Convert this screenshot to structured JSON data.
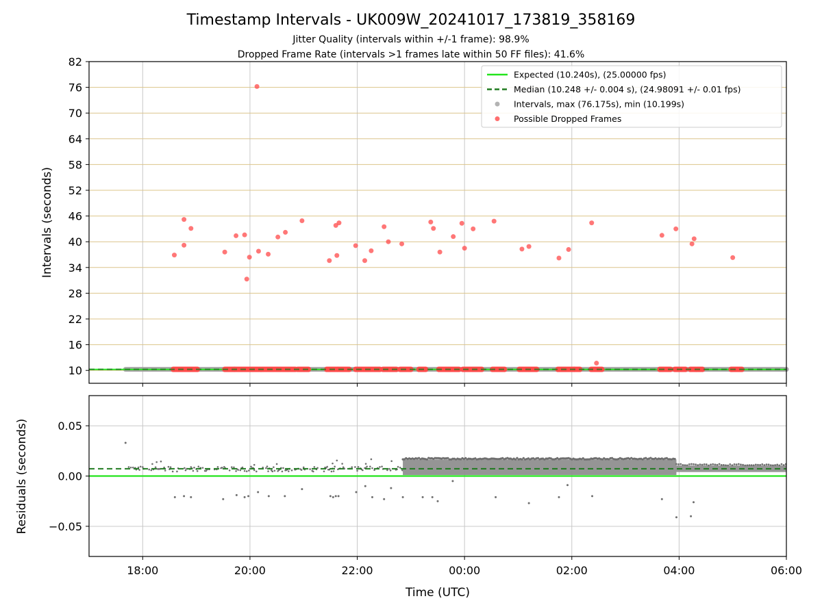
{
  "title": "Timestamp Intervals - UK009W_20241017_173819_358169",
  "subtitle1": "Jitter Quality (intervals within +/-1 frame): 98.9%",
  "subtitle2": "Dropped Frame Rate (intervals >1 frames late within 50 FF files): 41.6%",
  "colors": {
    "expected": "#22e41b",
    "median": "#1f7a1f",
    "intervals": "#9a9a9a",
    "dropped": "#ff4a4a",
    "hgrid_top": "#dcc48a",
    "grid": "#c8c8c8",
    "residual_point": "#6e6e6e"
  },
  "chart_data": [
    {
      "id": "intervals",
      "type": "scatter",
      "xlabel": "",
      "ylabel": "Intervals (seconds)",
      "xlim_hours": [
        17.0,
        30.0
      ],
      "ylim": [
        7,
        82
      ],
      "yticks": [
        10,
        16,
        22,
        28,
        34,
        40,
        46,
        52,
        58,
        64,
        70,
        76,
        82
      ],
      "ytick_labels": [
        "10",
        "16",
        "22",
        "28",
        "34",
        "40",
        "46",
        "52",
        "58",
        "64",
        "70",
        "76",
        "82"
      ],
      "xticks_hours": [
        18,
        20,
        22,
        24,
        26,
        28,
        30
      ],
      "expected": 10.24,
      "median": 10.248,
      "interval_range_hours": [
        17.68,
        30.0
      ],
      "dropped_points": [
        [
          18.59,
          36.9
        ],
        [
          18.77,
          45.2
        ],
        [
          18.77,
          39.2
        ],
        [
          18.9,
          43.1
        ],
        [
          19.53,
          37.6
        ],
        [
          19.74,
          41.4
        ],
        [
          19.9,
          41.6
        ],
        [
          19.94,
          31.3
        ],
        [
          19.99,
          36.4
        ],
        [
          20.13,
          76.2
        ],
        [
          20.16,
          37.8
        ],
        [
          20.34,
          37.1
        ],
        [
          20.52,
          41.1
        ],
        [
          20.66,
          42.2
        ],
        [
          20.97,
          44.9
        ],
        [
          21.48,
          35.6
        ],
        [
          21.6,
          43.8
        ],
        [
          21.62,
          36.8
        ],
        [
          21.66,
          44.4
        ],
        [
          21.97,
          39.1
        ],
        [
          22.14,
          35.6
        ],
        [
          22.26,
          37.9
        ],
        [
          22.5,
          43.5
        ],
        [
          22.58,
          40.0
        ],
        [
          22.83,
          39.5
        ],
        [
          23.37,
          44.6
        ],
        [
          23.42,
          43.1
        ],
        [
          23.54,
          37.6
        ],
        [
          23.79,
          41.2
        ],
        [
          23.95,
          44.3
        ],
        [
          24.0,
          38.5
        ],
        [
          24.16,
          43.0
        ],
        [
          24.55,
          44.8
        ],
        [
          25.07,
          38.3
        ],
        [
          25.2,
          38.9
        ],
        [
          25.76,
          36.2
        ],
        [
          25.94,
          38.2
        ],
        [
          26.37,
          44.4
        ],
        [
          27.68,
          41.5
        ],
        [
          27.94,
          43.0
        ],
        [
          28.24,
          39.5
        ],
        [
          28.28,
          40.7
        ],
        [
          29.0,
          36.3
        ],
        [
          26.46,
          11.7
        ]
      ],
      "dropped_bands_hours": [
        [
          18.57,
          19.04
        ],
        [
          19.53,
          19.72
        ],
        [
          19.72,
          20.85
        ],
        [
          20.89,
          21.09
        ],
        [
          21.43,
          21.65
        ],
        [
          21.65,
          21.87
        ],
        [
          21.97,
          22.42
        ],
        [
          22.48,
          22.74
        ],
        [
          22.8,
          23.01
        ],
        [
          23.15,
          23.29
        ],
        [
          23.52,
          23.9
        ],
        [
          23.97,
          24.34
        ],
        [
          24.52,
          24.76
        ],
        [
          25.02,
          25.36
        ],
        [
          25.74,
          26.05
        ],
        [
          26.05,
          26.16
        ],
        [
          26.36,
          26.57
        ],
        [
          27.64,
          27.84
        ],
        [
          27.92,
          28.13
        ],
        [
          28.21,
          28.44
        ],
        [
          28.97,
          29.18
        ]
      ],
      "legend": [
        {
          "kind": "line",
          "label": "Expected (10.240s), (25.00000 fps)"
        },
        {
          "kind": "dashed",
          "label": "Median (10.248 +/- 0.004 s), (24.98091 +/- 0.01 fps)"
        },
        {
          "kind": "gray",
          "label": "Intervals, max (76.175s), min (10.199s)"
        },
        {
          "kind": "red",
          "label": "Possible Dropped Frames"
        }
      ]
    },
    {
      "id": "residuals",
      "type": "scatter",
      "xlabel": "Time (UTC)",
      "ylabel": "Residuals (seconds)",
      "xlim_hours": [
        17.0,
        30.0
      ],
      "ylim": [
        -0.08,
        0.08
      ],
      "yticks": [
        0.05,
        0.0,
        -0.05
      ],
      "ytick_labels": [
        "0.05",
        "0.00",
        "−0.05"
      ],
      "xticks_hours": [
        18,
        20,
        22,
        24,
        26,
        28,
        30
      ],
      "xtick_labels": [
        "18:00",
        "20:00",
        "22:00",
        "00:00",
        "02:00",
        "04:00",
        "06:00"
      ],
      "zero_line": 0.0,
      "median_residual": 0.0072,
      "outliers": [
        [
          17.68,
          0.033
        ],
        [
          18.6,
          -0.021
        ],
        [
          18.77,
          -0.02
        ],
        [
          18.9,
          -0.021
        ],
        [
          19.5,
          -0.023
        ],
        [
          19.75,
          -0.019
        ],
        [
          19.9,
          -0.021
        ],
        [
          19.97,
          -0.02
        ],
        [
          20.15,
          -0.016
        ],
        [
          20.35,
          -0.02
        ],
        [
          20.65,
          -0.02
        ],
        [
          20.97,
          -0.013
        ],
        [
          21.5,
          -0.02
        ],
        [
          21.55,
          -0.021
        ],
        [
          21.6,
          -0.02
        ],
        [
          21.65,
          -0.02
        ],
        [
          21.98,
          -0.016
        ],
        [
          22.15,
          -0.01
        ],
        [
          22.28,
          -0.021
        ],
        [
          22.5,
          -0.023
        ],
        [
          22.63,
          -0.012
        ],
        [
          22.85,
          -0.021
        ],
        [
          23.22,
          -0.021
        ],
        [
          23.4,
          -0.021
        ],
        [
          23.5,
          -0.025
        ],
        [
          23.78,
          -0.005
        ],
        [
          24.58,
          -0.021
        ],
        [
          25.2,
          -0.027
        ],
        [
          25.76,
          -0.021
        ],
        [
          25.92,
          -0.009
        ],
        [
          26.38,
          -0.02
        ],
        [
          27.68,
          -0.023
        ],
        [
          27.95,
          -0.041
        ],
        [
          28.22,
          -0.04
        ],
        [
          28.27,
          -0.026
        ]
      ]
    }
  ]
}
